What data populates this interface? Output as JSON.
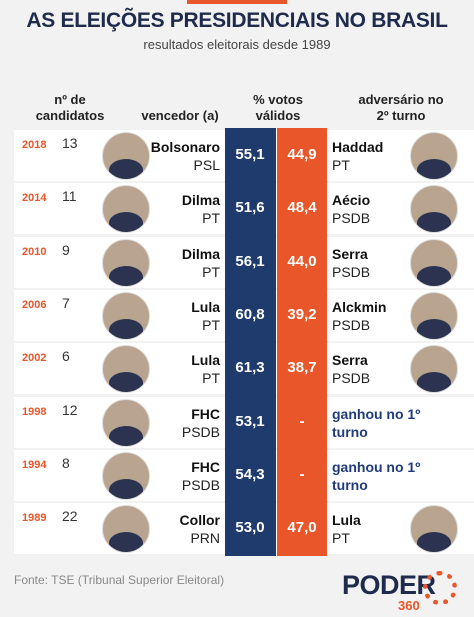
{
  "header": {
    "title": "AS ELEIÇÕES PRESIDENCIAIS NO BRASIL",
    "subtitle": "resultados eleitorais desde 1989"
  },
  "columns": [
    "nº de candidatos",
    "vencedor (a)",
    "% votos válidos",
    "adversário no 2º turno"
  ],
  "rows": [
    {
      "year": "2018",
      "candidates": "13",
      "winner": "Bolsonaro",
      "winner_party": "PSL",
      "winner_pct": "55,1",
      "opponent_pct": "44,9",
      "opponent": "Haddad",
      "opponent_party": "PT"
    },
    {
      "year": "2014",
      "candidates": "11",
      "winner": "Dilma",
      "winner_party": "PT",
      "winner_pct": "51,6",
      "opponent_pct": "48,4",
      "opponent": "Aécio",
      "opponent_party": "PSDB"
    },
    {
      "year": "2010",
      "candidates": "9",
      "winner": "Dilma",
      "winner_party": "PT",
      "winner_pct": "56,1",
      "opponent_pct": "44,0",
      "opponent": "Serra",
      "opponent_party": "PSDB"
    },
    {
      "year": "2006",
      "candidates": "7",
      "winner": "Lula",
      "winner_party": "PT",
      "winner_pct": "60,8",
      "opponent_pct": "39,2",
      "opponent": "Alckmin",
      "opponent_party": "PSDB"
    },
    {
      "year": "2002",
      "candidates": "6",
      "winner": "Lula",
      "winner_party": "PT",
      "winner_pct": "61,3",
      "opponent_pct": "38,7",
      "opponent": "Serra",
      "opponent_party": "PSDB"
    },
    {
      "year": "1998",
      "candidates": "12",
      "winner": "FHC",
      "winner_party": "PSDB",
      "winner_pct": "53,1",
      "opponent_pct": "-",
      "note": "ganhou no 1º turno"
    },
    {
      "year": "1994",
      "candidates": "8",
      "winner": "FHC",
      "winner_party": "PSDB",
      "winner_pct": "54,3",
      "opponent_pct": "-",
      "note": "ganhou no 1º turno"
    },
    {
      "year": "1989",
      "candidates": "22",
      "winner": "Collor",
      "winner_party": "PRN",
      "winner_pct": "53,0",
      "opponent_pct": "47,0",
      "opponent": "Lula",
      "opponent_party": "PT"
    }
  ],
  "footer": {
    "source": "Fonte: TSE (Tribunal Superior Eleitoral)",
    "logo": "PODER",
    "logo_sub": "360"
  }
}
